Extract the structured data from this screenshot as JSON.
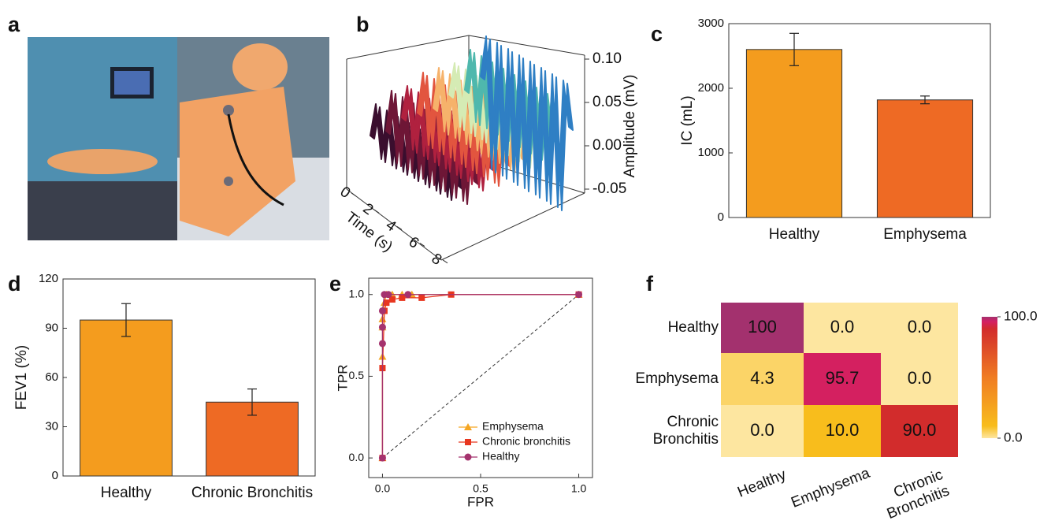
{
  "chart_data": [
    {
      "type": "image",
      "label": "a"
    },
    {
      "type": "waterfall3d",
      "label": "b",
      "xlabel": "Time (s)",
      "zlabel": "Amplitude (mV)",
      "x": [
        0,
        0.5,
        1,
        1.5,
        2,
        2.5,
        3,
        3.5,
        4,
        4.5,
        5,
        5.5,
        6,
        6.5,
        7,
        7.5,
        8
      ],
      "xticks": [
        0,
        2,
        4,
        6,
        8
      ],
      "zlim": [
        -0.05,
        0.1
      ],
      "zticks": [
        {
          "value": -0.05,
          "label": "-0.05"
        },
        {
          "value": 0,
          "label": "0.00"
        },
        {
          "value": 0.05,
          "label": "0.05"
        },
        {
          "value": 0.1,
          "label": "0.10"
        }
      ],
      "series": [
        {
          "color": "#3a0e2e",
          "values": [
            0.03,
            0.07,
            0.01,
            0.07,
            0.01,
            0.07,
            0.01,
            0.07,
            0.01,
            0.07,
            0.01,
            0.07,
            0.01,
            0.07,
            0.01,
            0.07,
            0.03
          ]
        },
        {
          "color": "#6e1636",
          "values": [
            0.03,
            0.08,
            0.0,
            0.08,
            0.0,
            0.08,
            0.0,
            0.08,
            0.0,
            0.08,
            0.0,
            0.08,
            0.0,
            0.08,
            0.0,
            0.08,
            0.03
          ]
        },
        {
          "color": "#b0213f",
          "values": [
            0.04,
            0.08,
            0.01,
            0.08,
            0.01,
            0.08,
            0.01,
            0.08,
            0.01,
            0.08,
            0.01,
            0.08,
            0.01,
            0.08,
            0.01,
            0.08,
            0.04
          ]
        },
        {
          "color": "#e2553f",
          "values": [
            0.04,
            0.09,
            0.01,
            0.09,
            0.01,
            0.09,
            0.01,
            0.09,
            0.01,
            0.09,
            0.01,
            0.09,
            0.01,
            0.09,
            0.01,
            0.09,
            0.04
          ]
        },
        {
          "color": "#f6b26b",
          "values": [
            0.04,
            0.09,
            0.02,
            0.09,
            0.02,
            0.09,
            0.02,
            0.09,
            0.02,
            0.09,
            0.02,
            0.09,
            0.02,
            0.09,
            0.02,
            0.09,
            0.04
          ]
        },
        {
          "color": "#d5ebb4",
          "values": [
            0.05,
            0.09,
            0.02,
            0.09,
            0.02,
            0.09,
            0.02,
            0.09,
            0.02,
            0.09,
            0.02,
            0.09,
            0.02,
            0.09,
            0.02,
            0.09,
            0.05
          ]
        },
        {
          "color": "#4fb8ad",
          "values": [
            0.05,
            0.1,
            0.02,
            0.1,
            0.02,
            0.1,
            0.02,
            0.1,
            0.02,
            0.1,
            0.02,
            0.1,
            0.02,
            0.1,
            0.02,
            0.1,
            0.05
          ]
        },
        {
          "color": "#2f7fc4",
          "values": [
            0.06,
            0.11,
            -0.04,
            0.11,
            -0.04,
            0.11,
            -0.04,
            0.11,
            -0.04,
            0.11,
            -0.04,
            0.11,
            -0.04,
            0.11,
            -0.04,
            0.11,
            0.06
          ]
        }
      ]
    },
    {
      "type": "bar",
      "label": "c",
      "ylabel": "IC (mL)",
      "categories": [
        "Healthy",
        "Emphysema"
      ],
      "values": [
        2600,
        1820
      ],
      "errors": [
        250,
        60
      ],
      "colors": [
        "#f49c1e",
        "#ee6a24"
      ],
      "ylim": [
        0,
        3000
      ],
      "yticks": [
        0,
        1000,
        2000,
        3000
      ]
    },
    {
      "type": "bar",
      "label": "d",
      "ylabel": "FEV1 (%)",
      "categories": [
        "Healthy",
        "Chronic Bronchitis"
      ],
      "values": [
        95,
        45
      ],
      "errors": [
        10,
        8
      ],
      "colors": [
        "#f49c1e",
        "#ee6a24"
      ],
      "ylim": [
        0,
        120
      ],
      "yticks": [
        0,
        30,
        60,
        90,
        120
      ]
    },
    {
      "type": "line",
      "label": "e",
      "xlabel": "FPR",
      "ylabel": "TPR",
      "xlim": [
        -0.07,
        1.07
      ],
      "ylim": [
        -0.12,
        1.1
      ],
      "xticks": [
        {
          "value": 0,
          "label": "0.0"
        },
        {
          "value": 0.5,
          "label": "0.5"
        },
        {
          "value": 1,
          "label": "1.0"
        }
      ],
      "yticks": [
        {
          "value": 0,
          "label": "0.0"
        },
        {
          "value": 0.5,
          "label": "0.5"
        },
        {
          "value": 1,
          "label": "1.0"
        }
      ],
      "diagonal": true,
      "legend": "lower right",
      "series": [
        {
          "name": "Emphysema",
          "color": "#f5a623",
          "marker": "triangle",
          "x": [
            0,
            0,
            0,
            0,
            0.01,
            0.02,
            0.05,
            0.1,
            0.15,
            1
          ],
          "values": [
            0,
            0.62,
            0.8,
            0.85,
            0.95,
            1,
            1,
            1,
            1,
            1
          ]
        },
        {
          "name": "Chronic bronchitis",
          "color": "#e8361f",
          "marker": "square",
          "x": [
            0,
            0,
            0.01,
            0.02,
            0.05,
            0.1,
            0.2,
            0.35,
            1
          ],
          "values": [
            0,
            0.55,
            0.9,
            0.95,
            0.97,
            0.98,
            0.98,
            1,
            1
          ]
        },
        {
          "name": "Healthy",
          "color": "#a5336e",
          "marker": "circle",
          "x": [
            0,
            0,
            0,
            0,
            0.01,
            0.03,
            0.13,
            1
          ],
          "values": [
            0,
            0.7,
            0.8,
            0.9,
            1,
            1,
            1,
            1
          ]
        }
      ]
    },
    {
      "type": "heatmap",
      "label": "f",
      "rows": [
        "Healthy",
        "Emphysema",
        "Chronic Bronchitis"
      ],
      "columns": [
        "Healthy",
        "Emphysema",
        "Chronic Bronchitis"
      ],
      "values": [
        [
          100,
          0,
          0
        ],
        [
          4.3,
          95.7,
          0
        ],
        [
          0,
          10,
          90
        ]
      ],
      "value_labels": [
        [
          "100",
          "0.0",
          "0.0"
        ],
        [
          "4.3",
          "95.7",
          "0.0"
        ],
        [
          "0.0",
          "10.0",
          "90.0"
        ]
      ],
      "clim": [
        0,
        100
      ],
      "cticks": [
        {
          "value": 0,
          "label": "0.0"
        },
        {
          "value": 100,
          "label": "100.0"
        }
      ],
      "colormap": [
        {
          "at": 0,
          "color": "#fde6a0"
        },
        {
          "at": 10,
          "color": "#f8bd1c"
        },
        {
          "at": 50,
          "color": "#f07c22"
        },
        {
          "at": 90,
          "color": "#d22c2c"
        },
        {
          "at": 96,
          "color": "#d41f63"
        },
        {
          "at": 100,
          "color": "#a3316e"
        }
      ]
    }
  ]
}
